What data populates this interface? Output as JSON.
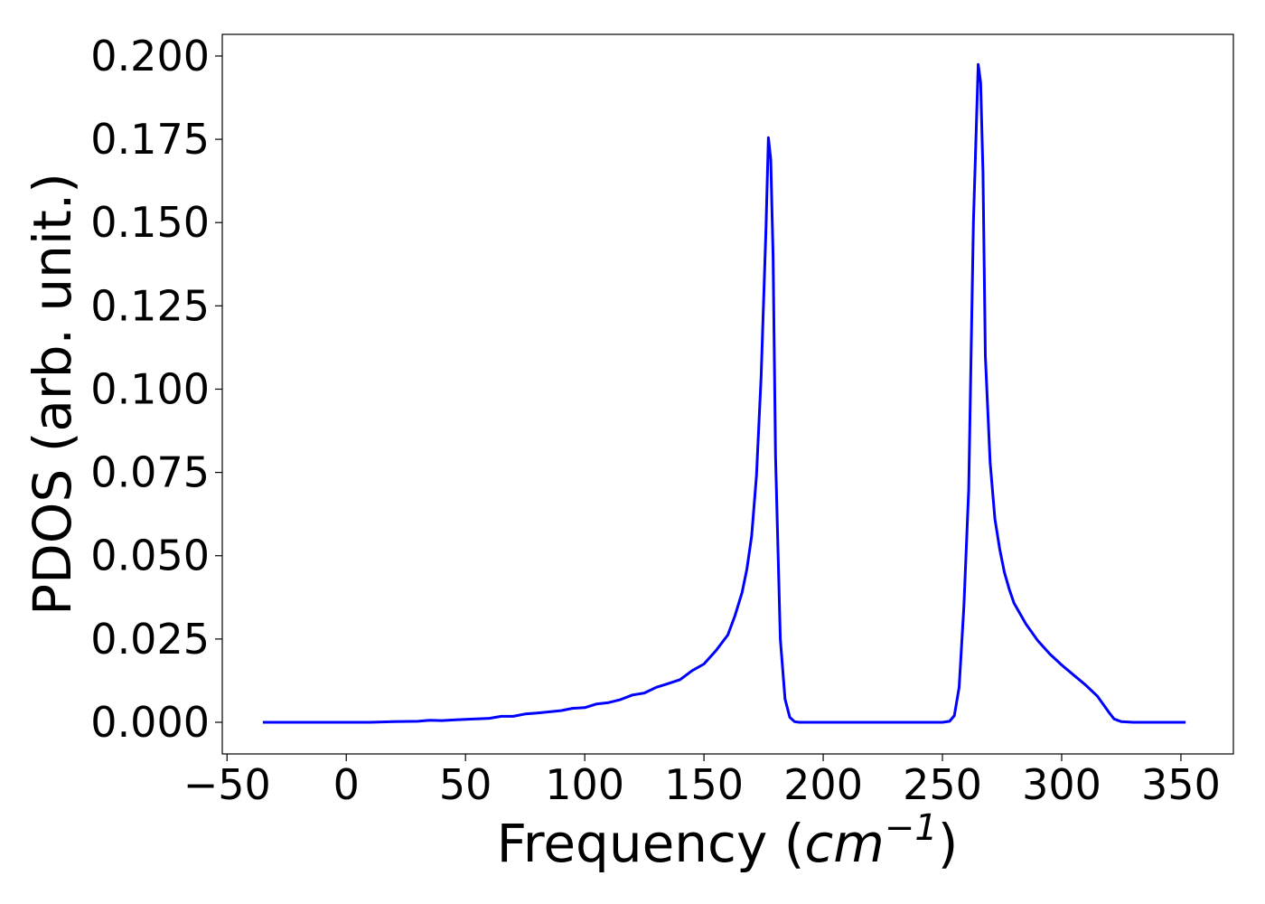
{
  "chart_data": {
    "type": "line",
    "title": "",
    "xlabel": "Frequency",
    "xlabel_unit_base": "cm",
    "xlabel_unit_exponent": "−1",
    "ylabel": "PDOS (arb. unit.)",
    "xlim": [
      -52,
      372
    ],
    "ylim": [
      -0.0095,
      0.2065
    ],
    "xticks": [
      -50,
      0,
      50,
      100,
      150,
      200,
      250,
      300,
      350
    ],
    "xtick_labels": [
      "−50",
      "0",
      "50",
      "100",
      "150",
      "200",
      "250",
      "300",
      "350"
    ],
    "yticks": [
      0.0,
      0.025,
      0.05,
      0.075,
      0.1,
      0.125,
      0.15,
      0.175,
      0.2
    ],
    "ytick_labels": [
      "0.000",
      "0.025",
      "0.050",
      "0.075",
      "0.100",
      "0.125",
      "0.150",
      "0.175",
      "0.200"
    ],
    "grid": false,
    "legend": "none",
    "series": [
      {
        "color": "#0000ff",
        "x": [
          -35,
          0,
          10,
          20,
          30,
          35,
          40,
          50,
          60,
          65,
          70,
          75,
          80,
          90,
          95,
          100,
          105,
          110,
          115,
          120,
          125,
          130,
          135,
          140,
          145,
          150,
          155,
          160,
          163,
          166,
          168,
          170,
          172,
          174,
          176,
          177,
          178,
          179,
          180,
          182,
          184,
          186,
          188,
          190,
          195,
          200,
          250,
          253,
          255,
          257,
          259,
          261,
          263,
          265,
          266,
          267,
          268,
          270,
          272,
          274,
          276,
          278,
          280,
          285,
          290,
          295,
          300,
          305,
          310,
          315,
          318,
          320,
          322,
          325,
          330,
          352
        ],
        "y": [
          0.0,
          0.0,
          0.0,
          0.0002,
          0.0003,
          0.0006,
          0.0005,
          0.0009,
          0.0012,
          0.0018,
          0.0018,
          0.0025,
          0.0028,
          0.0035,
          0.0042,
          0.0044,
          0.0055,
          0.0059,
          0.0068,
          0.0082,
          0.0088,
          0.0105,
          0.0116,
          0.0128,
          0.0155,
          0.0175,
          0.0215,
          0.0262,
          0.032,
          0.039,
          0.046,
          0.056,
          0.074,
          0.104,
          0.148,
          0.1755,
          0.169,
          0.14,
          0.08,
          0.025,
          0.007,
          0.0015,
          0.0002,
          0.0,
          0.0,
          0.0,
          0.0,
          0.0003,
          0.002,
          0.0105,
          0.035,
          0.07,
          0.15,
          0.1975,
          0.192,
          0.165,
          0.11,
          0.078,
          0.061,
          0.052,
          0.045,
          0.04,
          0.0358,
          0.0295,
          0.0245,
          0.0205,
          0.0172,
          0.0142,
          0.0112,
          0.0078,
          0.0048,
          0.0028,
          0.001,
          0.0002,
          0.0,
          0.0
        ]
      }
    ]
  }
}
